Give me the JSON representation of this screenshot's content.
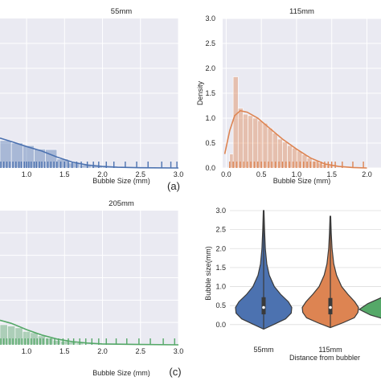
{
  "chart_data": [
    {
      "type": "histogram",
      "panel_label": "",
      "title": "55mm",
      "xlabel": "Bubble Size (mm)",
      "ylabel": "",
      "color": "#4c72b0",
      "xticks": [
        "1.0",
        "1.5",
        "2.0",
        "2.5",
        "3.0"
      ],
      "yticks": [],
      "xlim": [
        0.65,
        3.0
      ],
      "ylim": [
        0,
        3.0
      ],
      "bins": [
        {
          "x0": 0.65,
          "x1": 0.8,
          "density": 0.55
        },
        {
          "x0": 0.8,
          "x1": 0.95,
          "density": 0.5
        },
        {
          "x0": 0.95,
          "x1": 1.1,
          "density": 0.45
        },
        {
          "x0": 1.1,
          "x1": 1.25,
          "density": 0.38
        },
        {
          "x0": 1.25,
          "x1": 1.4,
          "density": 0.37
        },
        {
          "x0": 1.4,
          "x1": 1.55,
          "density": 0.18
        },
        {
          "x0": 1.55,
          "x1": 1.7,
          "density": 0.1
        },
        {
          "x0": 1.7,
          "x1": 1.85,
          "density": 0.06
        },
        {
          "x0": 1.85,
          "x1": 2.0,
          "density": 0.04
        },
        {
          "x0": 2.0,
          "x1": 2.15,
          "density": 0.02
        }
      ],
      "kde": [
        [
          0.65,
          0.6
        ],
        [
          0.8,
          0.53
        ],
        [
          1.0,
          0.43
        ],
        [
          1.2,
          0.34
        ],
        [
          1.4,
          0.22
        ],
        [
          1.6,
          0.12
        ],
        [
          1.8,
          0.06
        ],
        [
          2.0,
          0.03
        ],
        [
          2.2,
          0.015
        ],
        [
          2.5,
          0.005
        ],
        [
          3.0,
          0.0
        ]
      ],
      "rug": [
        0.66,
        0.7,
        0.74,
        0.78,
        0.82,
        0.86,
        0.9,
        0.93,
        0.97,
        1.0,
        1.03,
        1.06,
        1.1,
        1.13,
        1.17,
        1.2,
        1.24,
        1.28,
        1.32,
        1.36,
        1.4,
        1.45,
        1.5,
        1.55,
        1.6,
        1.66,
        1.72,
        1.8,
        1.88,
        1.95,
        2.05,
        2.15,
        2.3,
        2.45,
        2.6,
        2.78,
        2.9,
        2.98
      ]
    },
    {
      "type": "histogram",
      "panel_label": "(a)",
      "title": "115mm",
      "xlabel": "Bubble Size (mm)",
      "ylabel": "Density",
      "color": "#dd8452",
      "xticks": [
        "0.0",
        "0.5",
        "1.0",
        "1.5",
        "2.0"
      ],
      "yticks": [
        "0.0",
        "0.5",
        "1.0",
        "1.5",
        "2.0",
        "2.5",
        "3.0"
      ],
      "xlim": [
        -0.05,
        2.2
      ],
      "ylim": [
        0,
        3.0
      ],
      "bins": [
        {
          "x0": 0.05,
          "x1": 0.1,
          "density": 0.28
        },
        {
          "x0": 0.1,
          "x1": 0.17,
          "density": 1.83
        },
        {
          "x0": 0.17,
          "x1": 0.24,
          "density": 1.2
        },
        {
          "x0": 0.24,
          "x1": 0.31,
          "density": 1.08
        },
        {
          "x0": 0.31,
          "x1": 0.38,
          "density": 1.05
        },
        {
          "x0": 0.38,
          "x1": 0.45,
          "density": 1.0
        },
        {
          "x0": 0.45,
          "x1": 0.52,
          "density": 0.95
        },
        {
          "x0": 0.52,
          "x1": 0.59,
          "density": 0.9
        },
        {
          "x0": 0.59,
          "x1": 0.66,
          "density": 0.8
        },
        {
          "x0": 0.66,
          "x1": 0.73,
          "density": 0.7
        },
        {
          "x0": 0.73,
          "x1": 0.8,
          "density": 0.58
        },
        {
          "x0": 0.8,
          "x1": 0.87,
          "density": 0.52
        },
        {
          "x0": 0.87,
          "x1": 0.94,
          "density": 0.45
        },
        {
          "x0": 0.94,
          "x1": 1.01,
          "density": 0.4
        },
        {
          "x0": 1.01,
          "x1": 1.08,
          "density": 0.34
        },
        {
          "x0": 1.08,
          "x1": 1.15,
          "density": 0.27
        },
        {
          "x0": 1.15,
          "x1": 1.22,
          "density": 0.2
        },
        {
          "x0": 1.22,
          "x1": 1.29,
          "density": 0.14
        },
        {
          "x0": 1.29,
          "x1": 1.36,
          "density": 0.1
        },
        {
          "x0": 1.36,
          "x1": 1.43,
          "density": 0.07
        },
        {
          "x0": 1.43,
          "x1": 1.5,
          "density": 0.05
        }
      ],
      "kde": [
        [
          -0.02,
          0.28
        ],
        [
          0.05,
          0.75
        ],
        [
          0.12,
          1.05
        ],
        [
          0.2,
          1.15
        ],
        [
          0.3,
          1.12
        ],
        [
          0.45,
          1.0
        ],
        [
          0.6,
          0.82
        ],
        [
          0.8,
          0.58
        ],
        [
          1.0,
          0.38
        ],
        [
          1.2,
          0.2
        ],
        [
          1.4,
          0.08
        ],
        [
          1.6,
          0.03
        ],
        [
          1.8,
          0.01
        ],
        [
          2.0,
          0.0
        ]
      ],
      "rug": [
        0.05,
        0.1,
        0.15,
        0.2,
        0.25,
        0.3,
        0.35,
        0.4,
        0.45,
        0.5,
        0.55,
        0.6,
        0.65,
        0.7,
        0.75,
        0.8,
        0.85,
        0.9,
        0.95,
        1.0,
        1.05,
        1.1,
        1.15,
        1.2,
        1.25,
        1.3,
        1.35,
        1.4,
        1.45,
        1.5,
        1.55,
        1.65,
        1.8,
        1.95
      ]
    },
    {
      "type": "histogram",
      "panel_label": "(c)",
      "title": "205mm",
      "xlabel": "Bubble Size (mm)",
      "ylabel": "",
      "color": "#55a868",
      "xticks": [
        "1.0",
        "1.5",
        "2.0",
        "2.5",
        "3.0"
      ],
      "yticks": [],
      "xlim": [
        0.65,
        3.0
      ],
      "ylim": [
        0,
        3.0
      ],
      "bins": [
        {
          "x0": 0.65,
          "x1": 0.75,
          "density": 0.45
        },
        {
          "x0": 0.75,
          "x1": 0.85,
          "density": 0.42
        },
        {
          "x0": 0.85,
          "x1": 0.95,
          "density": 0.38
        },
        {
          "x0": 0.95,
          "x1": 1.05,
          "density": 0.3
        },
        {
          "x0": 1.05,
          "x1": 1.15,
          "density": 0.27
        },
        {
          "x0": 1.15,
          "x1": 1.25,
          "density": 0.2
        },
        {
          "x0": 1.25,
          "x1": 1.35,
          "density": 0.15
        },
        {
          "x0": 1.35,
          "x1": 1.45,
          "density": 0.1
        },
        {
          "x0": 1.45,
          "x1": 1.55,
          "density": 0.08
        },
        {
          "x0": 1.55,
          "x1": 1.65,
          "density": 0.06
        },
        {
          "x0": 1.65,
          "x1": 1.75,
          "density": 0.04
        }
      ],
      "kde": [
        [
          0.65,
          0.55
        ],
        [
          0.8,
          0.48
        ],
        [
          1.0,
          0.34
        ],
        [
          1.2,
          0.22
        ],
        [
          1.4,
          0.13
        ],
        [
          1.6,
          0.07
        ],
        [
          1.8,
          0.04
        ],
        [
          2.0,
          0.02
        ],
        [
          2.4,
          0.01
        ],
        [
          3.0,
          0.0
        ]
      ],
      "rug": [
        0.66,
        0.7,
        0.74,
        0.78,
        0.82,
        0.86,
        0.9,
        0.94,
        0.98,
        1.02,
        1.06,
        1.1,
        1.14,
        1.18,
        1.22,
        1.27,
        1.32,
        1.37,
        1.42,
        1.48,
        1.55,
        1.62,
        1.7,
        1.78,
        1.86,
        1.95,
        2.05,
        2.18,
        2.32,
        2.48,
        2.63,
        2.8,
        2.95
      ]
    },
    {
      "type": "violin",
      "panel_label": "",
      "title": "",
      "xlabel": "Distance from bubbler",
      "ylabel": "Bubble size(mm)",
      "yticks": [
        "0.0",
        "0.5",
        "1.0",
        "1.5",
        "2.0",
        "2.5",
        "3.0"
      ],
      "ylim": [
        -0.3,
        3.0
      ],
      "categories": [
        "55mm",
        "115mm",
        ""
      ],
      "series": [
        {
          "category": "55mm",
          "color": "#4c72b0",
          "top": 3.0,
          "bottom": -0.12,
          "median": 0.45,
          "q1": 0.27,
          "q3": 0.72,
          "profile": [
            [
              -0.12,
              0.0
            ],
            [
              0.0,
              0.35
            ],
            [
              0.15,
              0.78
            ],
            [
              0.3,
              0.98
            ],
            [
              0.45,
              1.0
            ],
            [
              0.6,
              0.88
            ],
            [
              0.8,
              0.6
            ],
            [
              1.0,
              0.38
            ],
            [
              1.3,
              0.2
            ],
            [
              1.6,
              0.11
            ],
            [
              2.0,
              0.06
            ],
            [
              2.5,
              0.03
            ],
            [
              3.0,
              0.01
            ]
          ]
        },
        {
          "category": "115mm",
          "color": "#dd8452",
          "top": 2.85,
          "bottom": -0.08,
          "median": 0.45,
          "q1": 0.27,
          "q3": 0.7,
          "profile": [
            [
              -0.08,
              0.0
            ],
            [
              0.05,
              0.45
            ],
            [
              0.18,
              0.85
            ],
            [
              0.32,
              0.98
            ],
            [
              0.45,
              1.0
            ],
            [
              0.6,
              0.87
            ],
            [
              0.8,
              0.62
            ],
            [
              1.0,
              0.4
            ],
            [
              1.3,
              0.22
            ],
            [
              1.6,
              0.12
            ],
            [
              2.0,
              0.06
            ],
            [
              2.4,
              0.03
            ],
            [
              2.85,
              0.01
            ]
          ]
        },
        {
          "category": "",
          "color": "#55a868",
          "top": 0.78,
          "bottom": 0.12,
          "median": 0.4,
          "q1": 0.3,
          "q3": 0.55,
          "profile": [
            [
              0.12,
              0.0
            ],
            [
              0.25,
              0.6
            ],
            [
              0.4,
              1.0
            ],
            [
              0.55,
              0.7
            ],
            [
              0.78,
              0.0
            ]
          ]
        }
      ]
    }
  ]
}
